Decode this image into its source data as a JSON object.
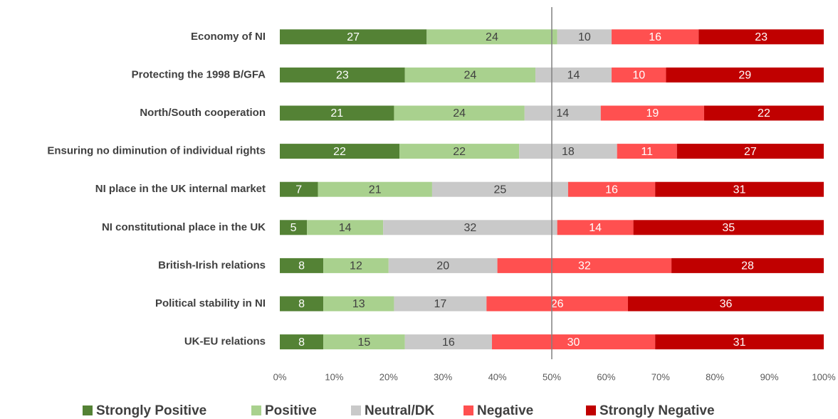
{
  "chart_data": {
    "type": "stacked_bar_horizontal",
    "categories": [
      "Economy of NI",
      "Protecting the 1998 B/GFA",
      "North/South cooperation",
      "Ensuring no diminution of individual rights",
      "NI place in the UK internal market",
      "NI constitutional place in the UK",
      "British-Irish relations",
      "Political stability in NI",
      "UK-EU relations"
    ],
    "series": [
      {
        "name": "Strongly Positive",
        "color": "#548235",
        "label_color": "#ffffff",
        "values": [
          27,
          23,
          21,
          22,
          7,
          5,
          8,
          8,
          8
        ]
      },
      {
        "name": "Positive",
        "color": "#a9d18e",
        "label_color": "#404040",
        "values": [
          24,
          24,
          24,
          22,
          21,
          14,
          12,
          13,
          15
        ]
      },
      {
        "name": "Neutral/DK",
        "color": "#c9c9c9",
        "label_color": "#404040",
        "values": [
          10,
          14,
          14,
          18,
          25,
          32,
          20,
          17,
          16
        ]
      },
      {
        "name": "Negative",
        "color": "#ff5050",
        "label_color": "#ffffff",
        "values": [
          16,
          10,
          19,
          11,
          16,
          14,
          32,
          26,
          30
        ]
      },
      {
        "name": "Strongly Negative",
        "color": "#c00000",
        "label_color": "#ffffff",
        "values": [
          23,
          29,
          22,
          27,
          31,
          35,
          28,
          36,
          31
        ]
      }
    ],
    "xlim": [
      0,
      100
    ],
    "xticks": [
      {
        "value": 0,
        "label": "0%"
      },
      {
        "value": 10,
        "label": "10%"
      },
      {
        "value": 20,
        "label": "20%"
      },
      {
        "value": 30,
        "label": "30%"
      },
      {
        "value": 40,
        "label": "40%"
      },
      {
        "value": 50,
        "label": "50%"
      },
      {
        "value": 60,
        "label": "60%"
      },
      {
        "value": 70,
        "label": "70%"
      },
      {
        "value": 80,
        "label": "80%"
      },
      {
        "value": 90,
        "label": "90%"
      },
      {
        "value": 100,
        "label": "100%"
      }
    ],
    "reference_x": 50,
    "legend": "bottom"
  }
}
